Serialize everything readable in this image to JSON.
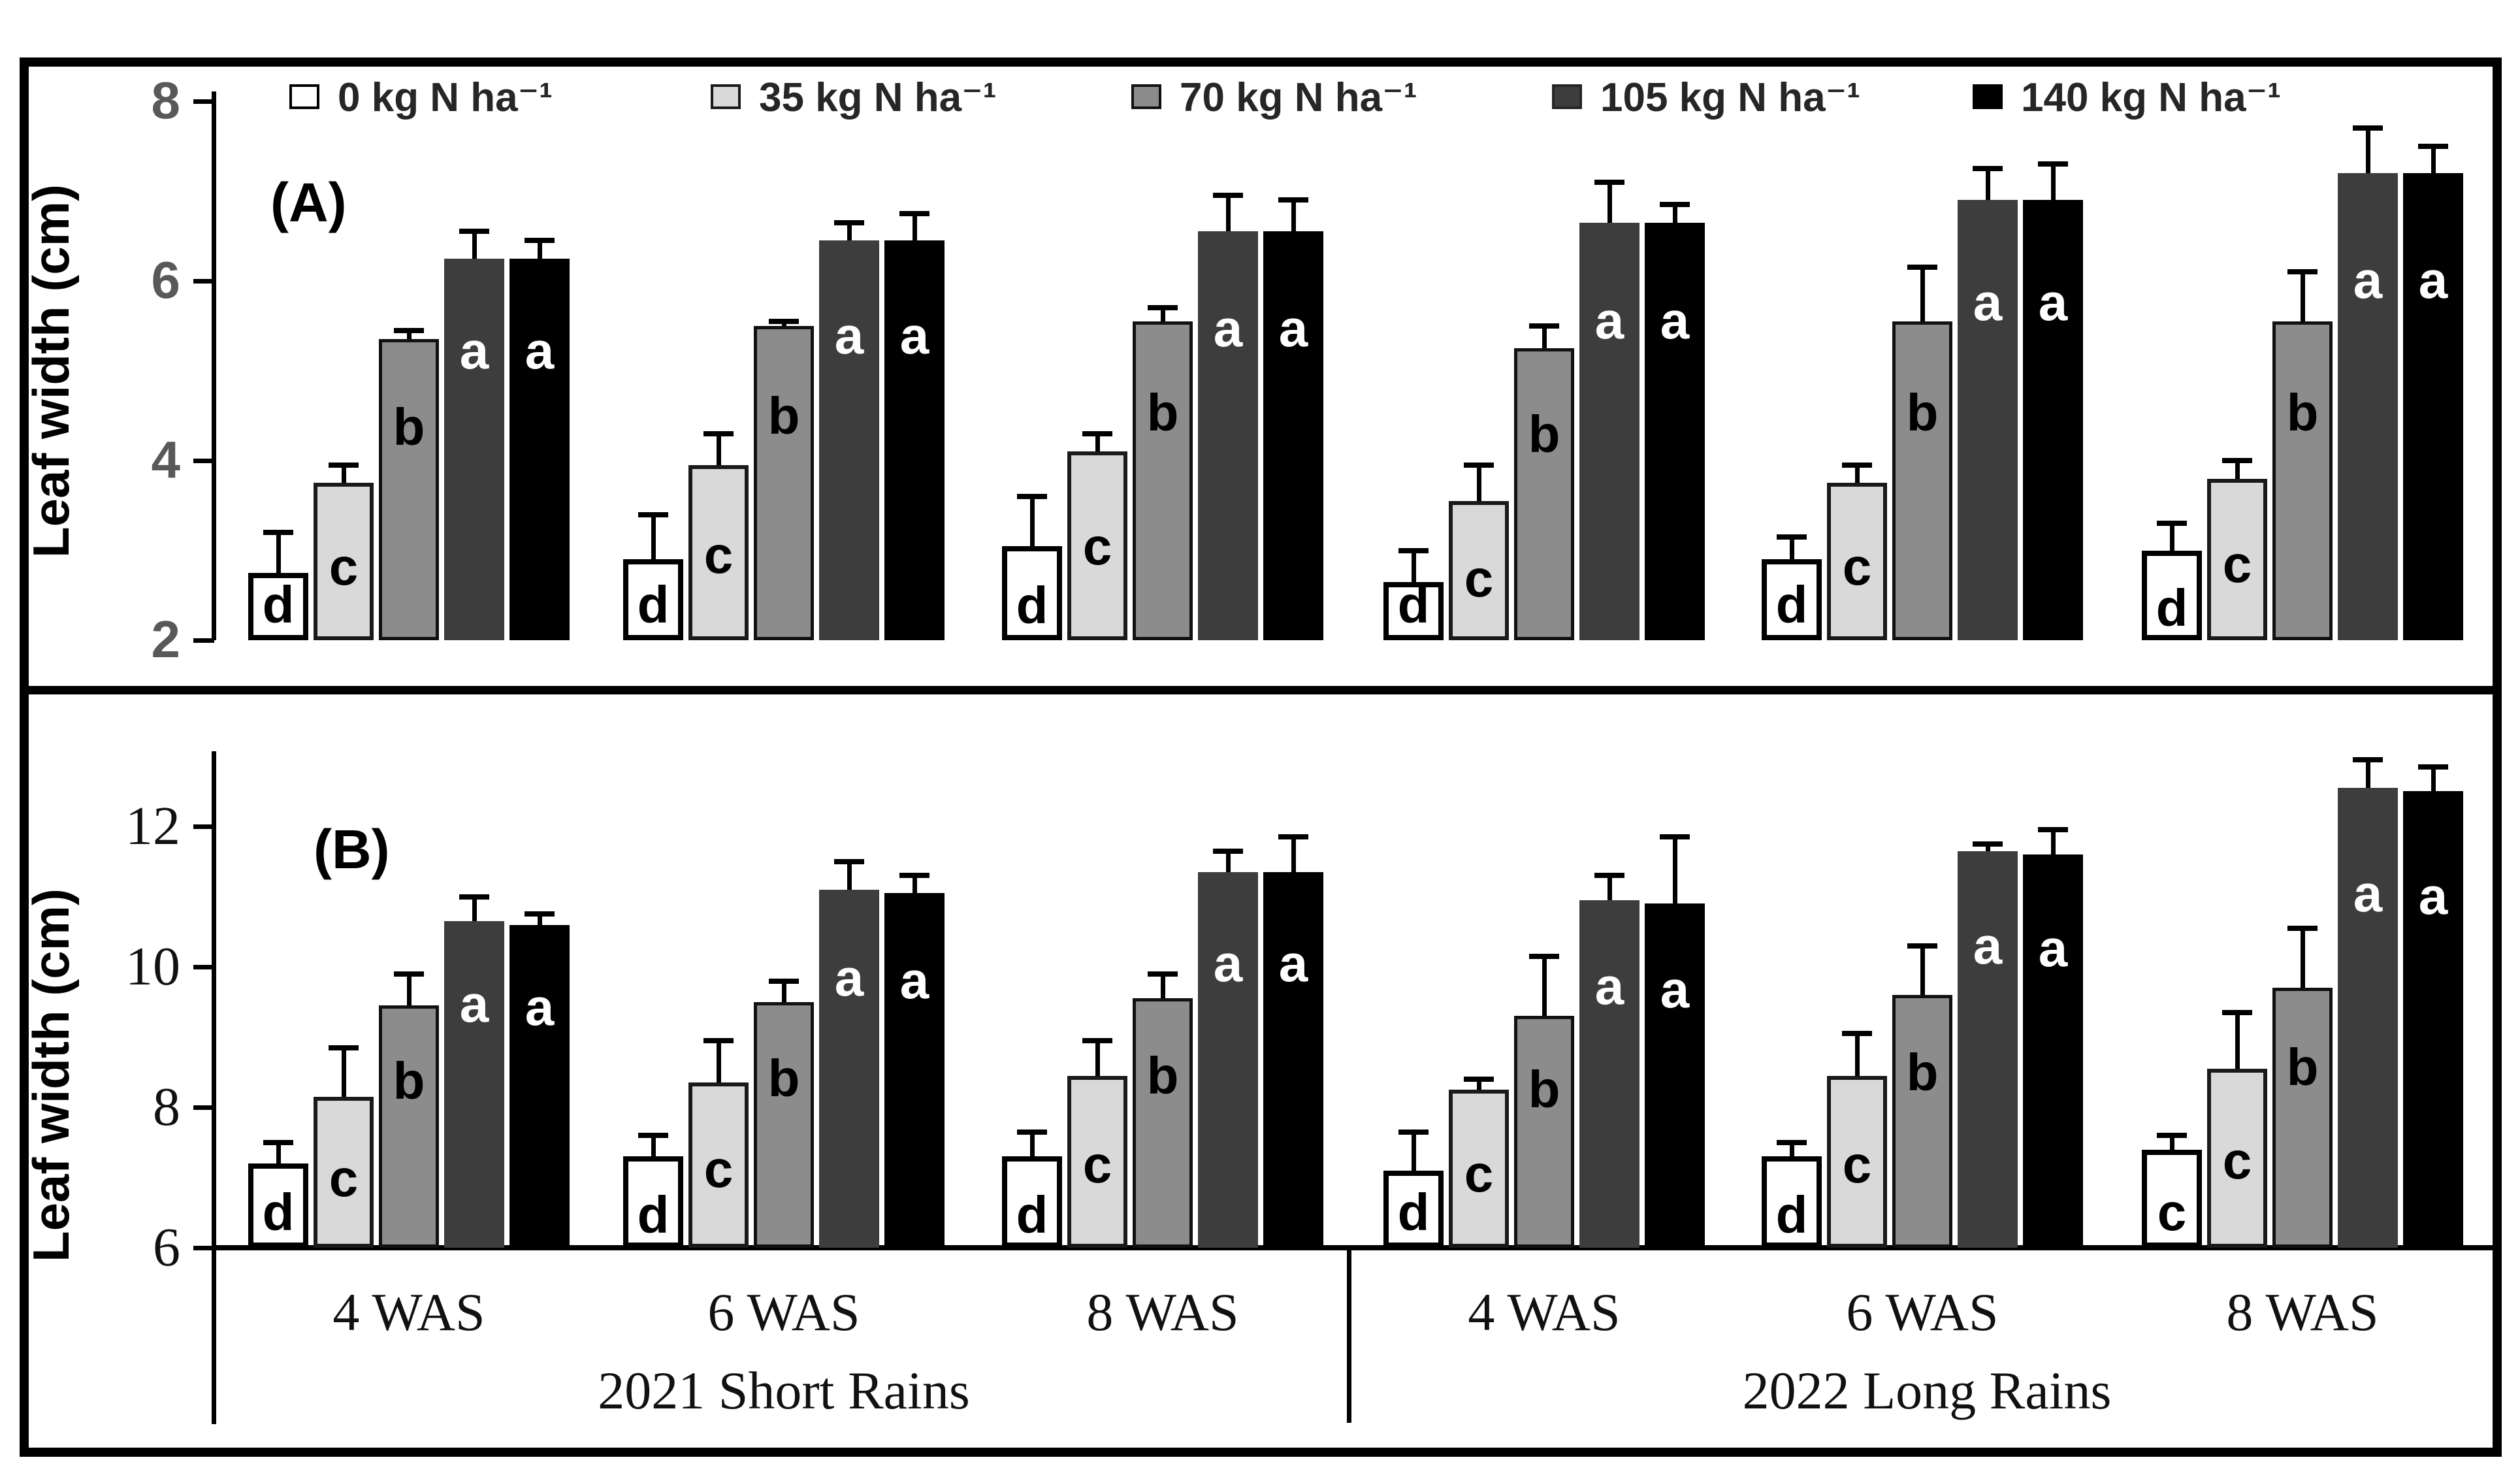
{
  "y_axis_title": "Leaf width (cm)",
  "panel_a_label": "(A)",
  "panel_b_label": "(B)",
  "x_axis": {
    "was_labels": [
      "4 WAS",
      "6 WAS",
      "8 WAS",
      "4 WAS",
      "6 WAS",
      "8 WAS"
    ],
    "season_labels": [
      "2021 Short Rains",
      "2022 Long Rains"
    ]
  },
  "legend": {
    "items": [
      {
        "label": "0 kg N ha⁻¹",
        "fill": "#ffffff",
        "border": "#000000"
      },
      {
        "label": "35 kg N ha⁻¹",
        "fill": "#d9d9d9",
        "border": "#1a1a1a"
      },
      {
        "label": "70 kg N ha⁻¹",
        "fill": "#8c8c8c",
        "border": "#111111"
      },
      {
        "label": "105 kg N ha⁻¹",
        "fill": "#3d3d3d",
        "border": "#262626"
      },
      {
        "label": "140 kg N ha⁻¹",
        "fill": "#000000",
        "border": "#000000"
      }
    ]
  },
  "chart_data": [
    {
      "type": "bar",
      "panel": "(A)",
      "title": "",
      "ylabel": "Leaf width (cm)",
      "xlabel": "",
      "ylim": [
        2,
        8.2
      ],
      "yticks": [
        2,
        4,
        6,
        8
      ],
      "grid": false,
      "legend_position": "top",
      "seasons": [
        "2021 Short Rains",
        "2022 Long Rains"
      ],
      "categories": [
        "4 WAS",
        "6 WAS",
        "8 WAS",
        "4 WAS",
        "6 WAS",
        "8 WAS"
      ],
      "series": [
        {
          "name": "0 kg N ha⁻¹",
          "fill": "#ffffff",
          "border": "#000000",
          "values": [
            2.75,
            2.9,
            3.05,
            2.65,
            2.9,
            3.0
          ],
          "errors_top": [
            3.2,
            3.4,
            3.6,
            3.0,
            3.15,
            3.3
          ],
          "letters": [
            "d",
            "d",
            "d",
            "d",
            "d",
            "d"
          ]
        },
        {
          "name": "35 kg N ha⁻¹",
          "fill": "#d9d9d9",
          "border": "#1a1a1a",
          "values": [
            3.75,
            3.95,
            4.1,
            3.55,
            3.75,
            3.8
          ],
          "errors_top": [
            3.95,
            4.3,
            4.3,
            3.95,
            3.95,
            4.0
          ],
          "letters": [
            "c",
            "c",
            "c",
            "c",
            "c",
            "c"
          ]
        },
        {
          "name": "70 kg N ha⁻¹",
          "fill": "#8c8c8c",
          "border": "#111111",
          "values": [
            5.35,
            5.5,
            5.55,
            5.25,
            5.55,
            5.55
          ],
          "errors_top": [
            5.45,
            5.55,
            5.7,
            5.5,
            6.15,
            6.1
          ],
          "letters": [
            "b",
            "b",
            "b",
            "b",
            "b",
            "b"
          ]
        },
        {
          "name": "105 kg N ha⁻¹",
          "fill": "#3d3d3d",
          "border": "#262626",
          "values": [
            6.25,
            6.45,
            6.55,
            6.65,
            6.9,
            7.2
          ],
          "errors_top": [
            6.55,
            6.65,
            6.95,
            7.1,
            7.25,
            7.7
          ],
          "letters": [
            "a",
            "a",
            "a",
            "a",
            "a",
            "a"
          ]
        },
        {
          "name": "140 kg N ha⁻¹",
          "fill": "#000000",
          "border": "#000000",
          "values": [
            6.25,
            6.45,
            6.55,
            6.65,
            6.9,
            7.2
          ],
          "errors_top": [
            6.45,
            6.75,
            6.9,
            6.85,
            7.3,
            7.5
          ],
          "letters": [
            "a",
            "a",
            "a",
            "a",
            "a",
            "a"
          ]
        }
      ]
    },
    {
      "type": "bar",
      "panel": "(B)",
      "title": "",
      "ylabel": "Leaf width (cm)",
      "xlabel": "",
      "ylim": [
        6,
        13.2
      ],
      "yticks": [
        6,
        8,
        10,
        12
      ],
      "grid": false,
      "legend_position": "none",
      "seasons": [
        "2021 Short Rains",
        "2022 Long Rains"
      ],
      "categories": [
        "4 WAS",
        "6 WAS",
        "8 WAS",
        "4 WAS",
        "6 WAS",
        "8 WAS"
      ],
      "series": [
        {
          "name": "0 kg N ha⁻¹",
          "fill": "#ffffff",
          "border": "#000000",
          "values": [
            7.2,
            7.3,
            7.3,
            7.1,
            7.3,
            7.4
          ],
          "errors_top": [
            7.5,
            7.6,
            7.65,
            7.65,
            7.5,
            7.6
          ],
          "letters": [
            "d",
            "d",
            "d",
            "d",
            "d",
            "c"
          ]
        },
        {
          "name": "35 kg N ha⁻¹",
          "fill": "#d9d9d9",
          "border": "#1a1a1a",
          "values": [
            8.15,
            8.35,
            8.45,
            8.25,
            8.45,
            8.55
          ],
          "errors_top": [
            8.85,
            8.95,
            8.95,
            8.4,
            9.05,
            9.35
          ],
          "letters": [
            "c",
            "c",
            "c",
            "c",
            "c",
            "c"
          ]
        },
        {
          "name": "70 kg N ha⁻¹",
          "fill": "#8c8c8c",
          "border": "#111111",
          "values": [
            9.45,
            9.5,
            9.55,
            9.3,
            9.6,
            9.7
          ],
          "errors_top": [
            9.9,
            9.8,
            9.9,
            10.15,
            10.3,
            10.55
          ],
          "letters": [
            "b",
            "b",
            "b",
            "b",
            "b",
            "b"
          ]
        },
        {
          "name": "105 kg N ha⁻¹",
          "fill": "#3d3d3d",
          "border": "#262626",
          "values": [
            10.65,
            11.1,
            11.35,
            10.95,
            11.65,
            12.55
          ],
          "errors_top": [
            11.0,
            11.5,
            11.65,
            11.3,
            11.75,
            12.95
          ],
          "letters": [
            "a",
            "a",
            "a",
            "a",
            "a",
            "a"
          ]
        },
        {
          "name": "140 kg N ha⁻¹",
          "fill": "#000000",
          "border": "#000000",
          "values": [
            10.6,
            11.05,
            11.35,
            10.9,
            11.6,
            12.5
          ],
          "errors_top": [
            10.75,
            11.3,
            11.85,
            11.85,
            11.95,
            12.85
          ],
          "letters": [
            "a",
            "a",
            "a",
            "a",
            "a",
            "a"
          ]
        }
      ]
    }
  ]
}
